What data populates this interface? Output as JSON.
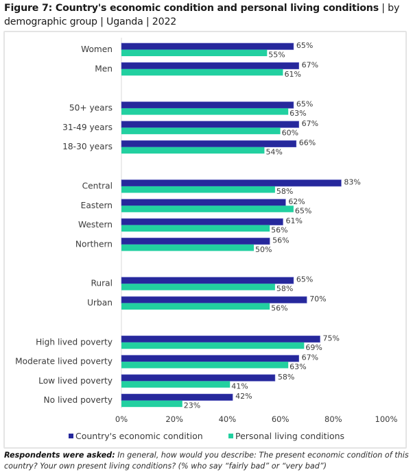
{
  "title": {
    "bold": "Figure 7: Country's economic condition and personal living conditions",
    "rest": " | by demographic group | Uganda | 2022"
  },
  "footnote": {
    "bold": "Respondents were asked:",
    "text": " In general, how would you describe: The present economic condition of this country? Your own present living conditions? (% who say “fairly bad” or “very bad”)"
  },
  "colors": {
    "economic": "#26289C",
    "personal": "#22D0A0",
    "axis": "#d9d9d9",
    "border": "#e4e4e4"
  },
  "chart_data": {
    "type": "bar",
    "orientation": "horizontal",
    "title": "Country's economic condition and personal living conditions | by demographic group | Uganda | 2022",
    "xlabel": "",
    "ylabel": "",
    "xlim": [
      0,
      100
    ],
    "x_ticks": [
      "0%",
      "20%",
      "40%",
      "60%",
      "80%",
      "100%"
    ],
    "x_tick_values": [
      0,
      20,
      40,
      60,
      80,
      100
    ],
    "grid": false,
    "legend_position": "bottom",
    "groups": [
      [
        "Women",
        "Men"
      ],
      [
        "50+ years",
        "31-49 years",
        "18-30 years"
      ],
      [
        "Central",
        "Eastern",
        "Western",
        "Northern"
      ],
      [
        "Rural",
        "Urban"
      ],
      [
        "High lived poverty",
        "Moderate lived poverty",
        "Low lived poverty",
        "No lived poverty"
      ]
    ],
    "categories": [
      "Women",
      "Men",
      "50+ years",
      "31-49 years",
      "18-30 years",
      "Central",
      "Eastern",
      "Western",
      "Northern",
      "Rural",
      "Urban",
      "High lived poverty",
      "Moderate lived poverty",
      "Low lived poverty",
      "No lived poverty"
    ],
    "series": [
      {
        "name": "Country's economic condition",
        "key": "economic",
        "values": [
          65,
          67,
          65,
          67,
          66,
          83,
          62,
          61,
          56,
          65,
          70,
          75,
          67,
          58,
          42
        ]
      },
      {
        "name": "Personal living conditions",
        "key": "personal",
        "values": [
          55,
          61,
          63,
          60,
          54,
          58,
          65,
          56,
          50,
          58,
          56,
          69,
          63,
          41,
          23
        ]
      }
    ],
    "value_suffix": "%"
  }
}
